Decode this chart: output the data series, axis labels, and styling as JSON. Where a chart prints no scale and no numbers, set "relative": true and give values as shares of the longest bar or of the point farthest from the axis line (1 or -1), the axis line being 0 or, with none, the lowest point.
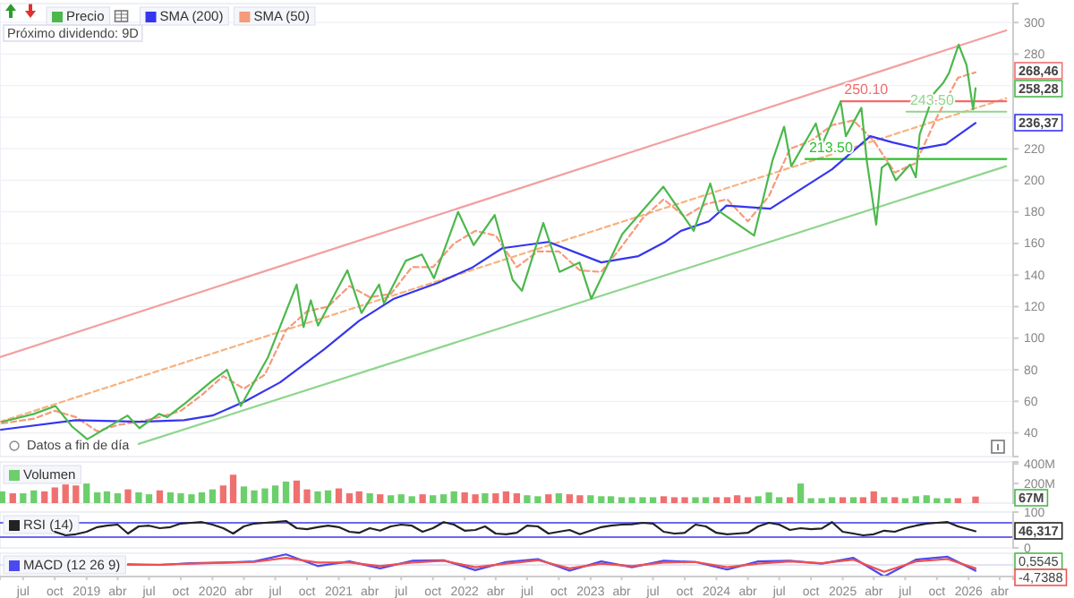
{
  "chart_data": [
    {
      "type": "line",
      "xlim": [
        "2018-04-25",
        "2026-05-10"
      ],
      "ylim": [
        25,
        312
      ],
      "yticks": [
        40,
        60,
        80,
        100,
        120,
        140,
        160,
        180,
        200,
        220,
        {
          "value": 240,
          "label": null
        },
        {
          "value": 260,
          "label": null
        },
        280,
        300
      ],
      "tick_labels": "y",
      "grid": "y",
      "legend": "top left",
      "series": [
        {
          "x": [
            "2018-04-25",
            "2026-04-20"
          ],
          "values": [
            88,
            295
          ],
          "color": "#f2a0a0"
        },
        {
          "x": [
            "2019-06-01",
            "2026-04-20"
          ],
          "values": [
            33,
            209
          ],
          "color": "#8fd68f"
        },
        {
          "x": [
            "2018-04-25",
            "2026-04-20"
          ],
          "values": [
            47,
            252
          ],
          "color": "#f7b27f",
          "line_style": "dashed"
        },
        {
          "x": [
            "2024-12-26",
            "2026-04-20"
          ],
          "values": [
            250.1,
            250.1
          ],
          "color": "#f26b6b"
        },
        {
          "x": [
            "2025-07-05",
            "2026-04-20"
          ],
          "values": [
            243.5,
            243.5
          ],
          "color": "#8fd68f"
        },
        {
          "x": [
            "2024-09-15",
            "2026-04-20"
          ],
          "values": [
            213.5,
            213.5
          ],
          "color": "#2fbf2f"
        },
        {
          "name": "SMA (50)",
          "color": "#f59a7a",
          "line_style": "dashed",
          "x": [
            "2018-05",
            "2018-08",
            "2018-10",
            "2018-12",
            "2019-02",
            "2019-04",
            "2019-06",
            "2019-08",
            "2019-10",
            "2019-12",
            "2020-02",
            "2020-04",
            "2020-06",
            "2020-08",
            "2020-10",
            "2020-12",
            "2021-02",
            "2021-04",
            "2021-06",
            "2021-08",
            "2021-10",
            "2021-12",
            "2022-02",
            "2022-04",
            "2022-06",
            "2022-08",
            "2022-10",
            "2022-12",
            "2023-02",
            "2023-04",
            "2023-06",
            "2023-08",
            "2023-10",
            "2023-12",
            "2024-02",
            "2024-04",
            "2024-06",
            "2024-08",
            "2024-10",
            "2024-12",
            "2025-02",
            "2025-04",
            "2025-06",
            "2025-08",
            "2025-10",
            "2025-12",
            "2026-01-21"
          ],
          "values": [
            46,
            49,
            54,
            50,
            41,
            45,
            47,
            50,
            54,
            64,
            76,
            68,
            77,
            105,
            117,
            120,
            133,
            126,
            128,
            145,
            145,
            160,
            168,
            165,
            145,
            155,
            155,
            143,
            142,
            158,
            176,
            188,
            177,
            185,
            188,
            174,
            190,
            220,
            225,
            235,
            238,
            225,
            205,
            211,
            240,
            265,
            268.46
          ]
        },
        {
          "name": "SMA (200)",
          "color": "#3535f0",
          "x": [
            "2018-04-28",
            "2018-12-01",
            "2019-06-05",
            "2019-10-10",
            "2020-01-01",
            "2020-04-05",
            "2020-07-15",
            "2020-11-20",
            "2021-03-01",
            "2021-06-10",
            "2021-10-15",
            "2022-01-25",
            "2022-04-20",
            "2022-09-01",
            "2023-02-01",
            "2023-05-20",
            "2023-08-05",
            "2023-09-20",
            "2023-12-10",
            "2024-01-30",
            "2024-06-05",
            "2024-12-01",
            "2025-03-22",
            "2025-05-26",
            "2025-08-12",
            "2025-10-27",
            "2026-01-21"
          ],
          "values": [
            42,
            48,
            47,
            48,
            51,
            60,
            72,
            93,
            111,
            125,
            135,
            145,
            157,
            161,
            148,
            152,
            161,
            168,
            174,
            184,
            182,
            207,
            228,
            224,
            220,
            223,
            236.37
          ]
        },
        {
          "name": "Precio",
          "color": "#4cb84c",
          "x": [
            "2018-05-01",
            "2018-08-01",
            "2018-10-03",
            "2018-11-20",
            "2019-01-03",
            "2019-04-30",
            "2019-06-03",
            "2019-07-30",
            "2019-08-23",
            "2019-10-15",
            "2019-12-31",
            "2020-02-12",
            "2020-03-23",
            "2020-06-10",
            "2020-09-01",
            "2020-09-21",
            "2020-10-12",
            "2020-11-02",
            "2021-01-26",
            "2021-03-08",
            "2021-04-28",
            "2021-05-12",
            "2021-07-14",
            "2021-08-30",
            "2021-10-04",
            "2021-12-13",
            "2022-01-27",
            "2022-03-29",
            "2022-05-20",
            "2022-06-16",
            "2022-08-17",
            "2022-10-03",
            "2022-11-30",
            "2023-01-03",
            "2023-04-03",
            "2023-07-31",
            "2023-10-27",
            "2023-12-14",
            "2024-01-05",
            "2024-04-19",
            "2024-06-12",
            "2024-07-15",
            "2024-08-05",
            "2024-10-15",
            "2024-11-01",
            "2024-12-26",
            "2025-01-10",
            "2025-02-24",
            "2025-03-12",
            "2025-04-08",
            "2025-04-24",
            "2025-05-12",
            "2025-06-04",
            "2025-07-15",
            "2025-08-01",
            "2025-08-12",
            "2025-09-22",
            "2025-10-20",
            "2025-11-05",
            "2025-12-03",
            "2025-12-26",
            "2026-01-14",
            "2026-01-21"
          ],
          "values": [
            47,
            52,
            57,
            44,
            36,
            51,
            43,
            52,
            50,
            59,
            73,
            80,
            57,
            88,
            134,
            107,
            124,
            108,
            143,
            116,
            134,
            122,
            149,
            153,
            138,
            180,
            159,
            178,
            137,
            130,
            173,
            142,
            148,
            125,
            166,
            196,
            168,
            198,
            181,
            165,
            213,
            234,
            209,
            236,
            222,
            250,
            228,
            246,
            212,
            172,
            208,
            211,
            200,
            210,
            202,
            229,
            255,
            262,
            268,
            286,
            273,
            245,
            258.28
          ]
        }
      ],
      "annotations": [
        "Próximo dividendo: 9D",
        "Datos a fin de día",
        {
          "text": "250.10",
          "x": "2024-12-26",
          "y": 250.1
        },
        {
          "text": "243.50",
          "x": "2025-07-05",
          "y": 243.5
        },
        {
          "text": "213.50",
          "x": "2024-09-15",
          "y": 213.5
        },
        "268,46",
        "258,28",
        "236,37"
      ]
    },
    {
      "type": "bar",
      "xlim": [
        "2018-04-25",
        "2026-05-10"
      ],
      "ylim": [
        0,
        420
      ],
      "yticks": [
        {
          "value": 200,
          "label": "200M"
        },
        {
          "value": 400,
          "label": "400M"
        }
      ],
      "tick_labels": "y",
      "legend": "top left",
      "x": [
        "2018-05",
        "2018-06",
        "2018-07",
        "2018-08",
        "2018-09",
        "2018-10",
        "2018-11",
        "2018-12",
        "2019-01",
        "2019-02",
        "2019-03",
        "2019-04",
        "2019-05",
        "2019-06",
        "2019-07",
        "2019-08",
        "2019-09",
        "2019-10",
        "2019-11",
        "2019-12",
        "2020-01",
        "2020-02",
        "2020-03",
        "2020-04",
        "2020-05",
        "2020-06",
        "2020-07",
        "2020-08",
        "2020-09",
        "2020-10",
        "2020-11",
        "2020-12",
        "2021-01",
        "2021-02",
        "2021-03",
        "2021-04",
        "2021-05",
        "2021-06",
        "2021-07",
        "2021-08",
        "2021-09",
        "2021-10",
        "2021-11",
        "2021-12",
        "2022-01",
        "2022-02",
        "2022-03",
        "2022-04",
        "2022-05",
        "2022-06",
        "2022-07",
        "2022-08",
        "2022-09",
        "2022-10",
        "2022-11",
        "2022-12",
        "2023-01",
        "2023-02",
        "2023-03",
        "2023-04",
        "2023-05",
        "2023-06",
        "2023-07",
        "2023-08",
        "2023-09",
        "2023-10",
        "2023-11",
        "2023-12",
        "2024-01",
        "2024-02",
        "2024-03",
        "2024-04",
        "2024-05",
        "2024-06",
        "2024-07",
        "2024-08",
        "2024-09",
        "2024-10",
        "2024-11",
        "2024-12",
        "2025-01",
        "2025-02",
        "2025-03",
        "2025-04",
        "2025-05",
        "2025-06",
        "2025-07",
        "2025-08",
        "2025-09",
        "2025-10",
        "2025-11",
        "2025-12",
        "2026-01-21"
      ],
      "series": [
        {
          "name": "Volumen",
          "color": "#6ccf6c",
          "values": [
            120,
            100,
            100,
            130,
            120,
            160,
            190,
            180,
            200,
            110,
            120,
            100,
            140,
            110,
            90,
            130,
            110,
            100,
            90,
            110,
            140,
            180,
            290,
            170,
            130,
            150,
            180,
            220,
            230,
            140,
            120,
            130,
            150,
            100,
            120,
            100,
            90,
            80,
            90,
            70,
            90,
            80,
            90,
            120,
            110,
            90,
            100,
            100,
            120,
            100,
            80,
            70,
            90,
            100,
            90,
            80,
            80,
            70,
            70,
            60,
            60,
            60,
            60,
            70,
            60,
            60,
            60,
            60,
            60,
            60,
            80,
            60,
            70,
            110,
            60,
            60,
            200,
            50,
            50,
            60,
            60,
            60,
            60,
            120,
            60,
            60,
            50,
            70,
            80,
            50,
            50,
            50,
            67
          ],
          "colors": [
            "#6ccf6c",
            "#f07070",
            "#6ccf6c",
            "#6ccf6c",
            "#f07070",
            "#f07070",
            "#f07070",
            "#f07070",
            "#6ccf6c",
            "#6ccf6c",
            "#6ccf6c",
            "#6ccf6c",
            "#f07070",
            "#6ccf6c",
            "#6ccf6c",
            "#f07070",
            "#6ccf6c",
            "#6ccf6c",
            "#6ccf6c",
            "#6ccf6c",
            "#6ccf6c",
            "#f07070",
            "#f07070",
            "#6ccf6c",
            "#6ccf6c",
            "#6ccf6c",
            "#6ccf6c",
            "#6ccf6c",
            "#f07070",
            "#f07070",
            "#6ccf6c",
            "#6ccf6c",
            "#f07070",
            "#f07070",
            "#f07070",
            "#6ccf6c",
            "#f07070",
            "#6ccf6c",
            "#6ccf6c",
            "#6ccf6c",
            "#f07070",
            "#6ccf6c",
            "#6ccf6c",
            "#6ccf6c",
            "#f07070",
            "#f07070",
            "#6ccf6c",
            "#f07070",
            "#f07070",
            "#f07070",
            "#6ccf6c",
            "#6ccf6c",
            "#f07070",
            "#6ccf6c",
            "#f07070",
            "#f07070",
            "#6ccf6c",
            "#6ccf6c",
            "#6ccf6c",
            "#6ccf6c",
            "#6ccf6c",
            "#6ccf6c",
            "#6ccf6c",
            "#f07070",
            "#f07070",
            "#f07070",
            "#6ccf6c",
            "#6ccf6c",
            "#f07070",
            "#f07070",
            "#f07070",
            "#f07070",
            "#6ccf6c",
            "#6ccf6c",
            "#6ccf6c",
            "#f07070",
            "#6ccf6c",
            "#6ccf6c",
            "#6ccf6c",
            "#6ccf6c",
            "#f07070",
            "#6ccf6c",
            "#f07070",
            "#f07070",
            "#6ccf6c",
            "#f07070",
            "#6ccf6c",
            "#6ccf6c",
            "#6ccf6c",
            "#6ccf6c",
            "#6ccf6c",
            "#f07070",
            "#f07070"
          ]
        }
      ],
      "annotations": [
        "67M"
      ]
    },
    {
      "type": "line",
      "xlim": [
        "2018-04-25",
        "2026-05-10"
      ],
      "ylim": [
        0,
        100
      ],
      "yticks": [
        0,
        100
      ],
      "tick_labels": "y",
      "legend": "top left",
      "ref_lines": [
        {
          "axis": "y",
          "value": 70,
          "color": "#6a6af0"
        },
        {
          "axis": "y",
          "value": 30,
          "color": "#6a6af0"
        }
      ],
      "series": [
        {
          "name": "RSI (14)",
          "color": "#222222",
          "x": [
            "2018-10",
            "2018-11",
            "2018-12",
            "2019-01",
            "2019-02",
            "2019-03",
            "2019-04",
            "2019-05",
            "2019-06",
            "2019-07",
            "2019-08",
            "2019-09",
            "2019-10",
            "2019-11",
            "2019-12",
            "2020-01",
            "2020-02",
            "2020-03",
            "2020-04",
            "2020-05",
            "2020-06",
            "2020-07",
            "2020-08",
            "2020-09",
            "2020-10",
            "2020-11",
            "2020-12",
            "2021-01",
            "2021-02",
            "2021-03",
            "2021-04",
            "2021-05",
            "2021-06",
            "2021-07",
            "2021-08",
            "2021-09",
            "2021-10",
            "2021-11",
            "2021-12",
            "2022-01",
            "2022-02",
            "2022-03",
            "2022-04",
            "2022-05",
            "2022-06",
            "2022-07",
            "2022-08",
            "2022-09",
            "2022-10",
            "2022-11",
            "2022-12",
            "2023-01",
            "2023-02",
            "2023-03",
            "2023-04",
            "2023-05",
            "2023-06",
            "2023-07",
            "2023-08",
            "2023-09",
            "2023-10",
            "2023-11",
            "2023-12",
            "2024-01",
            "2024-02",
            "2024-03",
            "2024-04",
            "2024-05",
            "2024-06",
            "2024-07",
            "2024-08",
            "2024-09",
            "2024-10",
            "2024-11",
            "2024-12",
            "2025-01",
            "2025-02",
            "2025-03",
            "2025-04",
            "2025-05",
            "2025-06",
            "2025-07",
            "2025-08",
            "2025-09",
            "2025-10",
            "2025-11",
            "2025-12",
            "2026-01-21"
          ],
          "values": [
            45,
            35,
            38,
            45,
            58,
            62,
            65,
            40,
            60,
            62,
            55,
            58,
            68,
            70,
            72,
            65,
            55,
            40,
            60,
            68,
            70,
            72,
            75,
            55,
            52,
            58,
            62,
            58,
            45,
            42,
            55,
            48,
            60,
            65,
            62,
            45,
            55,
            72,
            65,
            48,
            50,
            60,
            40,
            38,
            42,
            62,
            60,
            40,
            45,
            50,
            38,
            48,
            58,
            62,
            65,
            66,
            70,
            68,
            45,
            40,
            42,
            65,
            60,
            42,
            38,
            40,
            42,
            60,
            70,
            65,
            50,
            55,
            52,
            54,
            72,
            45,
            40,
            35,
            38,
            48,
            45,
            55,
            62,
            68,
            70,
            72,
            60,
            46.317
          ]
        }
      ],
      "annotations": [
        "46,317"
      ]
    },
    {
      "type": "line",
      "relative": true,
      "xlim": [
        "2018-04-25",
        "2026-05-10"
      ],
      "tick_labels": "x",
      "legend": "left",
      "xticks": [
        {
          "value": "2018-07-01",
          "label": "jul"
        },
        {
          "value": "2018-10-01",
          "label": "oct"
        },
        {
          "value": "2019-01-01",
          "label": "2019"
        },
        {
          "value": "2019-04-01",
          "label": "abr"
        },
        {
          "value": "2019-07-01",
          "label": "jul"
        },
        {
          "value": "2019-10-01",
          "label": "oct"
        },
        {
          "value": "2020-01-01",
          "label": "2020"
        },
        {
          "value": "2020-04-01",
          "label": "abr"
        },
        {
          "value": "2020-07-01",
          "label": "jul"
        },
        {
          "value": "2020-10-01",
          "label": "oct"
        },
        {
          "value": "2021-01-01",
          "label": "2021"
        },
        {
          "value": "2021-04-01",
          "label": "abr"
        },
        {
          "value": "2021-07-01",
          "label": "jul"
        },
        {
          "value": "2021-10-01",
          "label": "oct"
        },
        {
          "value": "2022-01-01",
          "label": "2022"
        },
        {
          "value": "2022-04-01",
          "label": "abr"
        },
        {
          "value": "2022-07-01",
          "label": "jul"
        },
        {
          "value": "2022-10-01",
          "label": "oct"
        },
        {
          "value": "2023-01-01",
          "label": "2023"
        },
        {
          "value": "2023-04-01",
          "label": "abr"
        },
        {
          "value": "2023-07-01",
          "label": "jul"
        },
        {
          "value": "2023-10-01",
          "label": "oct"
        },
        {
          "value": "2024-01-01",
          "label": "2024"
        },
        {
          "value": "2024-04-01",
          "label": "abr"
        },
        {
          "value": "2024-07-01",
          "label": "jul"
        },
        {
          "value": "2024-10-01",
          "label": "oct"
        },
        {
          "value": "2025-01-01",
          "label": "2025"
        },
        {
          "value": "2025-04-01",
          "label": "abr"
        },
        {
          "value": "2025-07-01",
          "label": "jul"
        },
        {
          "value": "2025-10-01",
          "label": "oct"
        },
        {
          "value": "2026-01-01",
          "label": "2026"
        },
        {
          "value": "2026-04-01",
          "label": "abr"
        }
      ],
      "series": [
        {
          "name": "MACD (12 26 9)",
          "color": "#4a4af0",
          "x": [
            "2019-05",
            "2019-08",
            "2019-11",
            "2020-02",
            "2020-05",
            "2020-08",
            "2020-11",
            "2021-02",
            "2021-05",
            "2021-08",
            "2021-11",
            "2022-02",
            "2022-05",
            "2022-08",
            "2022-11",
            "2023-02",
            "2023-05",
            "2023-08",
            "2023-11",
            "2024-02",
            "2024-05",
            "2024-08",
            "2024-11",
            "2025-02",
            "2025-05",
            "2025-08",
            "2025-11",
            "2026-01-21"
          ],
          "values": [
            0.05,
            0.0,
            0.15,
            0.2,
            0.3,
            0.9,
            -0.1,
            0.3,
            -0.3,
            0.35,
            0.4,
            -0.45,
            0.25,
            0.5,
            -0.5,
            0.3,
            -0.2,
            0.35,
            0.25,
            -0.4,
            0.3,
            0.35,
            0.1,
            0.6,
            -1,
            0.45,
            0.7,
            -0.5
          ]
        },
        {
          "color": "#f05050",
          "x": [
            "2019-05",
            "2019-08",
            "2019-11",
            "2020-02",
            "2020-05",
            "2020-08",
            "2020-11",
            "2021-02",
            "2021-05",
            "2021-08",
            "2021-11",
            "2022-02",
            "2022-05",
            "2022-08",
            "2022-11",
            "2023-02",
            "2023-05",
            "2023-08",
            "2023-11",
            "2024-02",
            "2024-05",
            "2024-08",
            "2024-11",
            "2025-02",
            "2025-05",
            "2025-08",
            "2025-11",
            "2026-01-21"
          ],
          "values": [
            0,
            0.02,
            0.1,
            0.18,
            0.25,
            0.6,
            0.2,
            0.2,
            -0.1,
            0.2,
            0.35,
            -0.2,
            0.1,
            0.4,
            -0.3,
            0.1,
            -0.1,
            0.2,
            0.25,
            -0.2,
            0.1,
            0.3,
            0.15,
            0.45,
            -0.6,
            0.3,
            0.5,
            -0.3
          ]
        }
      ],
      "annotations": [
        "0,5545",
        "-4,7388"
      ]
    }
  ]
}
